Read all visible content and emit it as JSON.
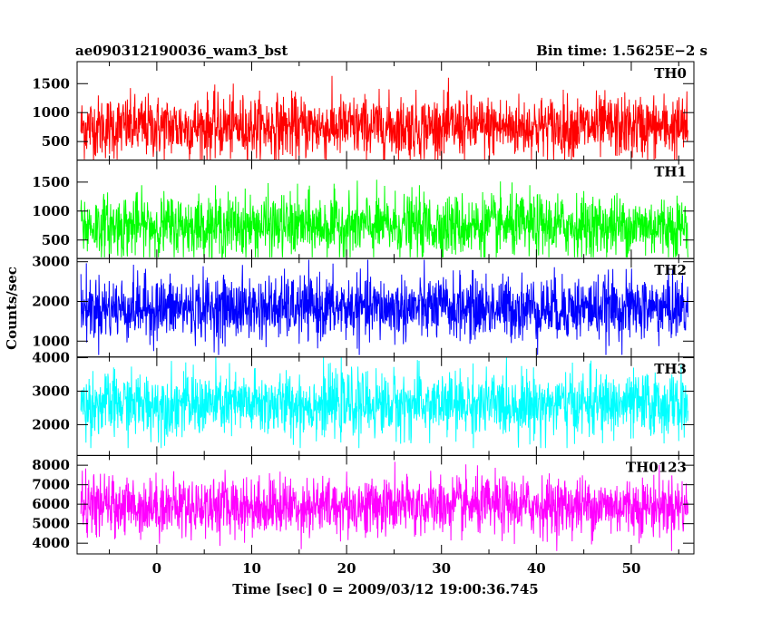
{
  "chart_data": {
    "type": "line",
    "title": "ae090312190036_wam3_bst",
    "bin_time_label": "Bin time: 1.5625E−2 s",
    "xlabel": "Time [sec] 0 = 2009/03/12 19:00:36.745",
    "ylabel": "Counts/sec",
    "xlim": [
      -8.4,
      56.6
    ],
    "data_range": [
      -8,
      56
    ],
    "x_ticks": [
      0,
      10,
      20,
      30,
      40,
      50
    ],
    "x_tick_labels": [
      "0",
      "10",
      "20",
      "30",
      "40",
      "50"
    ],
    "grid": false,
    "panels": [
      {
        "name": "TH0",
        "color": "#ff0000",
        "ylim": [
          180,
          1880
        ],
        "y_ticks": [
          500,
          1000,
          1500
        ],
        "y_tick_labels": [
          "500",
          "1000",
          "1500"
        ],
        "mean": 750,
        "sigma": 270,
        "min": 190,
        "max": 1850
      },
      {
        "name": "TH1",
        "color": "#00ff00",
        "ylim": [
          180,
          1880
        ],
        "y_ticks": [
          500,
          1000,
          1500
        ],
        "y_tick_labels": [
          "500",
          "1000",
          "1500"
        ],
        "mean": 740,
        "sigma": 270,
        "min": 200,
        "max": 1860
      },
      {
        "name": "TH2",
        "color": "#0000ff",
        "ylim": [
          600,
          3080
        ],
        "y_ticks": [
          1000,
          2000,
          3000
        ],
        "y_tick_labels": [
          "1000",
          "2000",
          "3000"
        ],
        "mean": 1830,
        "sigma": 400,
        "min": 650,
        "max": 3050
      },
      {
        "name": "TH3",
        "color": "#00ffff",
        "ylim": [
          1080,
          4020
        ],
        "y_ticks": [
          2000,
          3000,
          4000
        ],
        "y_tick_labels": [
          "2000",
          "3000",
          "4000"
        ],
        "mean": 2600,
        "sigma": 480,
        "min": 1300,
        "max": 4000
      },
      {
        "name": "TH0123",
        "color": "#ff00ff",
        "ylim": [
          3450,
          8500
        ],
        "y_ticks": [
          4000,
          5000,
          6000,
          7000,
          8000
        ],
        "y_tick_labels": [
          "4000",
          "5000",
          "6000",
          "7000",
          "8000"
        ],
        "mean": 5900,
        "sigma": 750,
        "min": 3600,
        "max": 8300
      }
    ]
  }
}
